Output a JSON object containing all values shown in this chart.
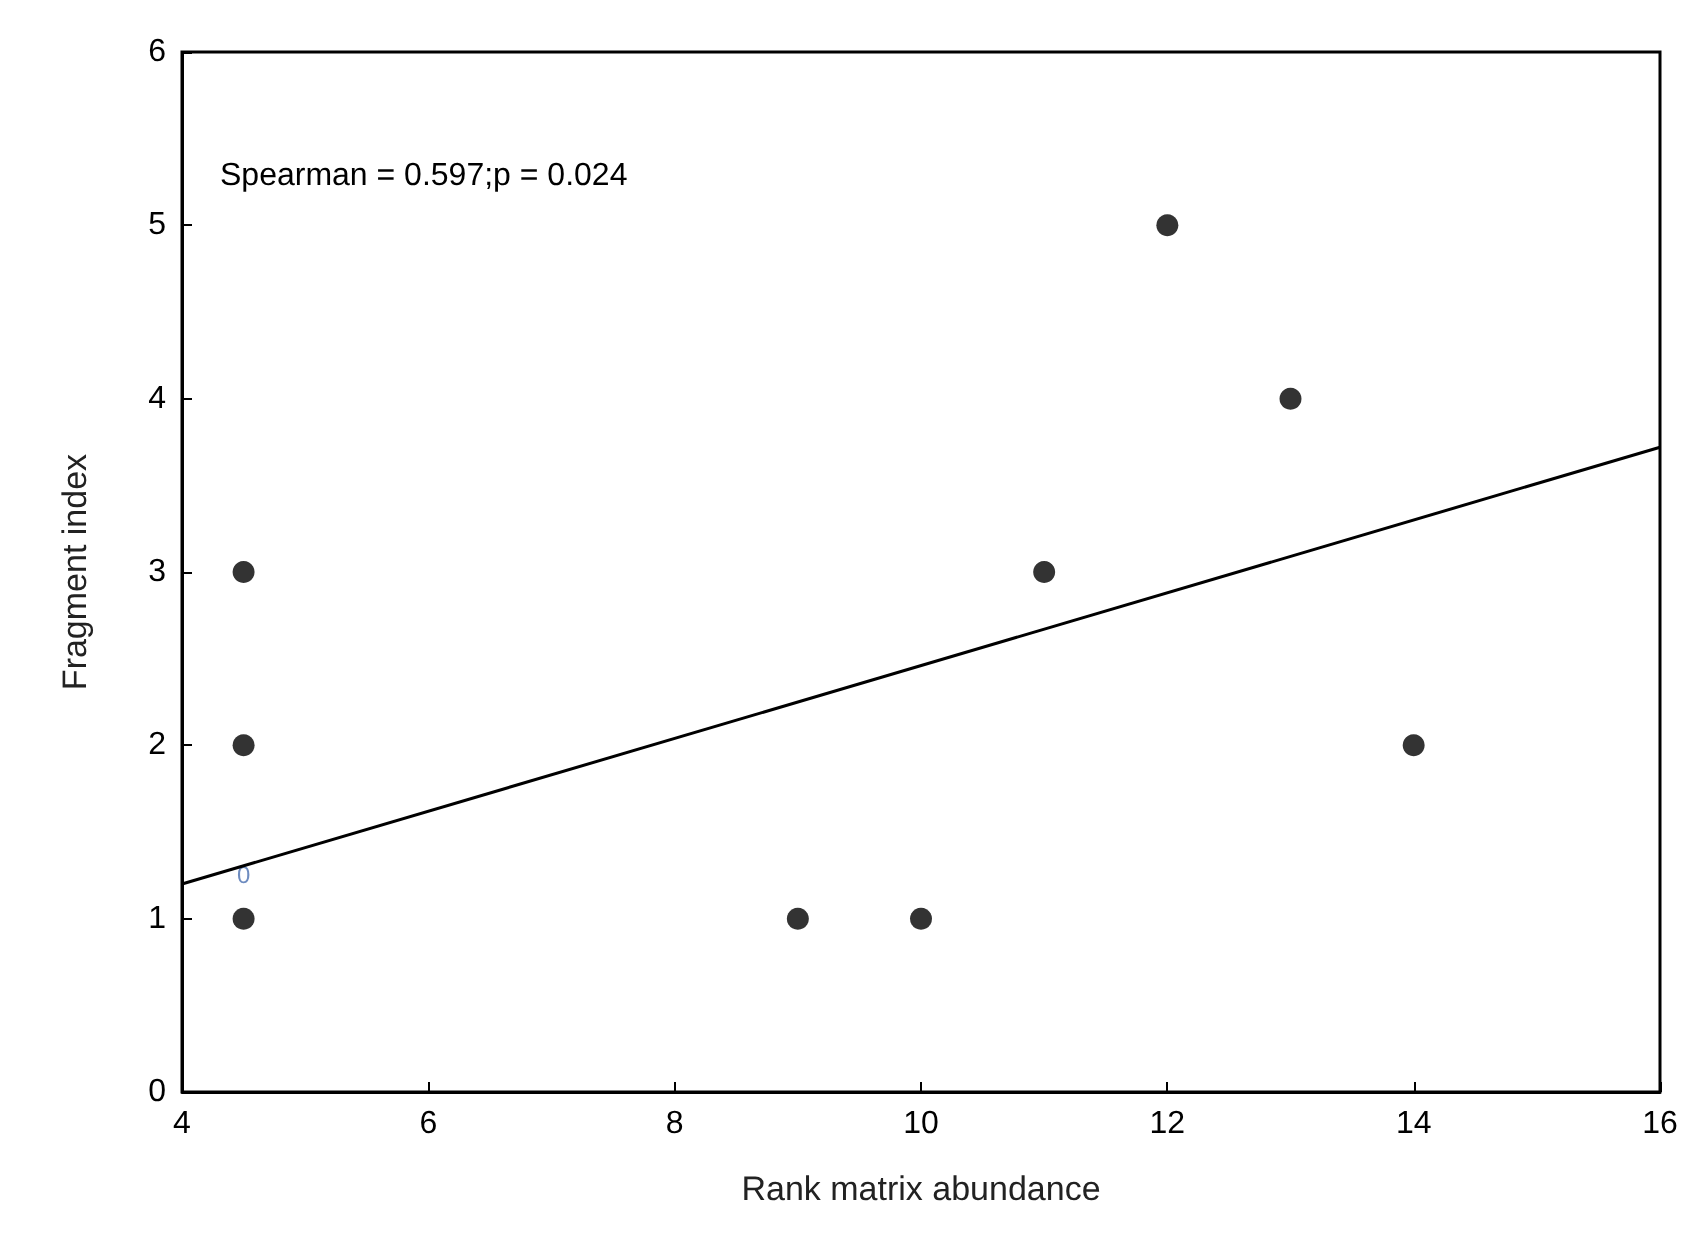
{
  "chart_data": {
    "type": "scatter",
    "xlabel": "Rank matrix abundance",
    "ylabel": "Fragment index",
    "xlim": [
      4,
      16
    ],
    "xticks": [
      4,
      6,
      8,
      10,
      12,
      14,
      16
    ],
    "ylim": [
      0,
      6
    ],
    "yticks": [
      0,
      1,
      2,
      3,
      4,
      5,
      6
    ],
    "grid": false,
    "marker": "circle",
    "annotations": [
      "Spearman = 0.597;p = 0.024",
      {
        "text": "0",
        "x": 4.5,
        "y": 1.25
      }
    ],
    "series": [
      {
        "color": "#000000",
        "x": [
          4.5,
          4.5,
          4.5,
          9,
          10,
          11,
          12,
          13,
          14
        ],
        "values": [
          3,
          2,
          1,
          1,
          1,
          3,
          5,
          4,
          2
        ]
      },
      {
        "type": "line",
        "color": "#000000",
        "marker": "none",
        "line_style": "solid",
        "x": [
          4,
          16
        ],
        "values": [
          1.2,
          3.72
        ]
      }
    ]
  }
}
